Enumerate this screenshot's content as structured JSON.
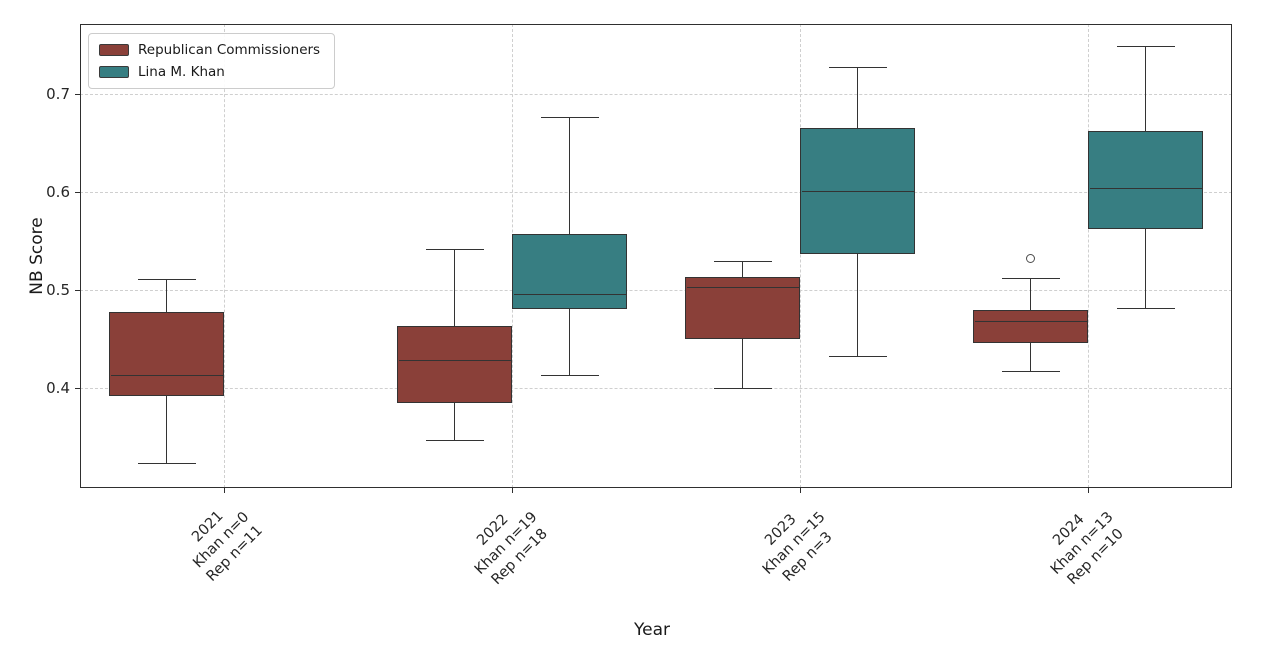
{
  "axes": {
    "y_label": "NB Score",
    "x_label": "Year",
    "y_ticks": [
      0.4,
      0.5,
      0.6,
      0.7
    ],
    "y_tick_labels": [
      "0.4",
      "0.5",
      "0.6",
      "0.7"
    ],
    "y_min": 0.298,
    "y_max": 0.771
  },
  "legend": {
    "items": [
      {
        "label": "Republican Commissioners",
        "series": "republican",
        "color": "#8a4039"
      },
      {
        "label": "Lina M. Khan",
        "series": "khan",
        "color": "#377e82"
      }
    ]
  },
  "colors": {
    "republican_fill": "#8a4039",
    "khan_fill": "#377e82",
    "box_edge": "#333333",
    "grid": "#cfcfcf",
    "spine": "#2f2f2f",
    "tick_text": "#262626"
  },
  "chart_data": {
    "type": "boxplot",
    "title": "",
    "xlabel": "Year",
    "ylabel": "NB Score",
    "ylim": [
      0.298,
      0.771
    ],
    "grid": true,
    "legend_position": "upper-left",
    "series_names": [
      "Republican Commissioners",
      "Lina M. Khan"
    ],
    "groups": [
      {
        "tick_lines": [
          "2021",
          "Khan n=0",
          "Rep n=11"
        ],
        "republican": {
          "whislo": 0.323,
          "q1": 0.392,
          "med": 0.412,
          "q3": 0.477,
          "whishi": 0.51,
          "fliers": []
        },
        "khan": null
      },
      {
        "tick_lines": [
          "2022",
          "Khan n=19",
          "Rep n=18"
        ],
        "republican": {
          "whislo": 0.346,
          "q1": 0.385,
          "med": 0.428,
          "q3": 0.463,
          "whishi": 0.541,
          "fliers": []
        },
        "khan": {
          "whislo": 0.412,
          "q1": 0.48,
          "med": 0.495,
          "q3": 0.557,
          "whishi": 0.675,
          "fliers": []
        }
      },
      {
        "tick_lines": [
          "2023",
          "Khan n=15",
          "Rep n=3"
        ],
        "republican": {
          "whislo": 0.399,
          "q1": 0.45,
          "med": 0.502,
          "q3": 0.513,
          "whishi": 0.529,
          "fliers": []
        },
        "khan": {
          "whislo": 0.432,
          "q1": 0.537,
          "med": 0.6,
          "q3": 0.665,
          "whishi": 0.726,
          "fliers": []
        }
      },
      {
        "tick_lines": [
          "2024",
          "Khan n=13",
          "Rep n=10"
        ],
        "republican": {
          "whislo": 0.417,
          "q1": 0.446,
          "med": 0.467,
          "q3": 0.479,
          "whishi": 0.511,
          "fliers": [
            0.532
          ]
        },
        "khan": {
          "whislo": 0.481,
          "q1": 0.562,
          "med": 0.603,
          "q3": 0.662,
          "whishi": 0.748,
          "fliers": []
        }
      }
    ]
  }
}
